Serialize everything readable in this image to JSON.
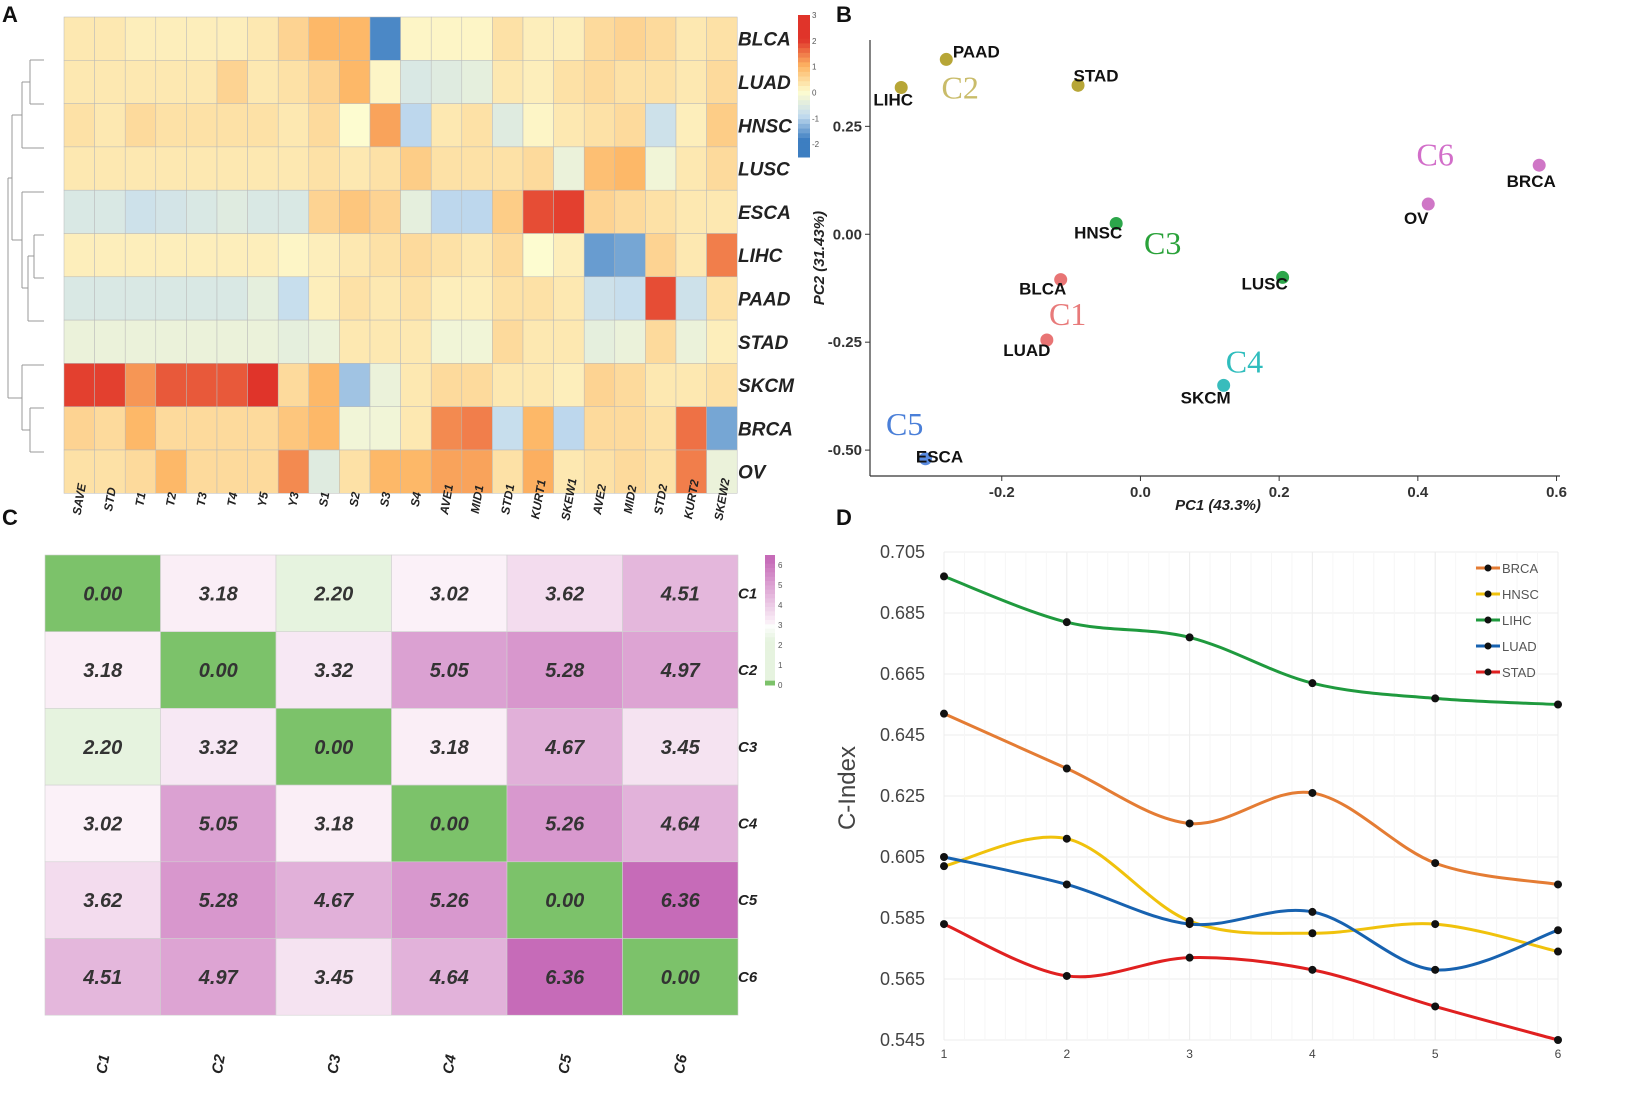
{
  "panels": {
    "a": "A",
    "b": "B",
    "c": "C",
    "d": "D"
  },
  "chart_data": [
    {
      "type": "heatmap",
      "panel": "A",
      "rows": [
        "BLCA",
        "LUAD",
        "HNSC",
        "LUSC",
        "ESCA",
        "LIHC",
        "PAAD",
        "STAD",
        "SKCM",
        "BRCA",
        "OV"
      ],
      "columns": [
        "SAVE",
        "STD",
        "T1",
        "T2",
        "T3",
        "T4",
        "Y5",
        "Y3",
        "S1",
        "S2",
        "S3",
        "S4",
        "AVE1",
        "MID1",
        "STD1",
        "KURT1",
        "SKEW1",
        "AVE2",
        "MID2",
        "STD2",
        "KURT2",
        "SKEW2"
      ],
      "values": [
        [
          0.3,
          0.3,
          0.2,
          0.2,
          0.2,
          0.2,
          0.3,
          0.6,
          1.0,
          1.0,
          -1.8,
          0.1,
          0.1,
          0.1,
          0.4,
          0.2,
          0.2,
          0.5,
          0.6,
          0.5,
          0.3,
          0.4
        ],
        [
          0.3,
          0.3,
          0.3,
          0.3,
          0.3,
          0.6,
          0.3,
          0.4,
          0.6,
          1.0,
          0.1,
          -0.6,
          -0.5,
          -0.4,
          0.3,
          0.2,
          0.4,
          0.5,
          0.4,
          0.4,
          0.3,
          0.5
        ],
        [
          0.4,
          0.3,
          0.5,
          0.4,
          0.4,
          0.4,
          0.4,
          0.3,
          0.5,
          0.0,
          1.2,
          -1.0,
          0.3,
          0.4,
          -0.5,
          0.1,
          0.3,
          0.4,
          0.5,
          -0.8,
          0.2,
          0.7
        ],
        [
          0.3,
          0.3,
          0.3,
          0.3,
          0.3,
          0.3,
          0.3,
          0.3,
          0.4,
          0.3,
          0.4,
          0.7,
          0.4,
          0.4,
          0.4,
          0.5,
          -0.3,
          0.9,
          1.0,
          -0.2,
          0.3,
          0.5
        ],
        [
          -0.6,
          -0.6,
          -0.8,
          -0.7,
          -0.6,
          -0.5,
          -0.6,
          -0.6,
          0.6,
          0.8,
          0.6,
          -0.4,
          -1.0,
          -1.0,
          0.7,
          1.9,
          2.0,
          0.6,
          0.5,
          0.4,
          0.3,
          0.3
        ],
        [
          0.2,
          0.2,
          0.2,
          0.2,
          0.2,
          0.2,
          0.2,
          0.1,
          0.2,
          0.3,
          0.4,
          0.5,
          0.4,
          0.3,
          0.5,
          0.0,
          0.2,
          -1.6,
          -1.5,
          0.6,
          0.3,
          1.5
        ],
        [
          -0.6,
          -0.6,
          -0.6,
          -0.6,
          -0.6,
          -0.6,
          -0.4,
          -0.9,
          0.2,
          0.4,
          0.3,
          0.4,
          0.2,
          0.2,
          0.4,
          0.4,
          0.3,
          -0.8,
          -0.9,
          1.9,
          -0.8,
          0.4
        ],
        [
          -0.3,
          -0.3,
          -0.3,
          -0.3,
          -0.3,
          -0.3,
          -0.3,
          -0.4,
          -0.3,
          0.3,
          0.3,
          0.3,
          -0.2,
          -0.2,
          0.5,
          0.3,
          0.3,
          -0.4,
          -0.3,
          0.5,
          -0.3,
          0.2
        ],
        [
          2.0,
          2.0,
          1.3,
          1.8,
          1.8,
          1.8,
          2.1,
          0.5,
          1.0,
          -1.2,
          -0.3,
          0.3,
          0.5,
          0.5,
          0.3,
          0.3,
          0.2,
          0.6,
          0.5,
          0.3,
          0.3,
          0.4
        ],
        [
          0.6,
          0.5,
          1.0,
          0.5,
          0.5,
          0.5,
          0.5,
          0.8,
          1.0,
          -0.2,
          -0.2,
          0.3,
          1.4,
          1.5,
          -0.9,
          1.0,
          -1.0,
          0.5,
          0.5,
          0.4,
          1.6,
          -1.5
        ],
        [
          0.4,
          0.4,
          0.5,
          1.0,
          0.5,
          0.5,
          0.5,
          1.4,
          -0.5,
          0.4,
          1.0,
          1.0,
          1.2,
          1.2,
          0.4,
          1.1,
          0.3,
          0.4,
          0.5,
          0.4,
          1.5,
          -0.3
        ]
      ],
      "colorbar": {
        "ticks": [
          "3",
          "2",
          "1",
          "0",
          "-1",
          "-2"
        ],
        "range": [
          -2.5,
          3.0
        ]
      },
      "colors": {
        "low": "#3d7ec1",
        "mid": "#fdfcd0",
        "high": "#e0342a"
      }
    },
    {
      "type": "scatter",
      "panel": "B",
      "xlabel": "PC1 (43.3%)",
      "ylabel": "PC2 (31.43%)",
      "xlim": [
        -0.39,
        0.605
      ],
      "ylim": [
        -0.56,
        0.45
      ],
      "xticks": [
        "-0.2",
        "0.0",
        "0.2",
        "0.4",
        "0.6"
      ],
      "xtick_values": [
        -0.2,
        0.0,
        0.2,
        0.4,
        0.6
      ],
      "yticks": [
        "0.25",
        "0.00",
        "-0.25",
        "-0.50"
      ],
      "ytick_values": [
        0.25,
        0.0,
        -0.25,
        -0.5
      ],
      "points": [
        {
          "label": "PAAD",
          "x": -0.28,
          "y": 0.405,
          "cluster": "C2"
        },
        {
          "label": "LIHC",
          "x": -0.345,
          "y": 0.34,
          "cluster": "C2"
        },
        {
          "label": "STAD",
          "x": -0.09,
          "y": 0.345,
          "cluster": "C2"
        },
        {
          "label": "HNSC",
          "x": -0.035,
          "y": 0.025,
          "cluster": "C3"
        },
        {
          "label": "LUSC",
          "x": 0.205,
          "y": -0.1,
          "cluster": "C3"
        },
        {
          "label": "BLCA",
          "x": -0.115,
          "y": -0.105,
          "cluster": "C1"
        },
        {
          "label": "LUAD",
          "x": -0.135,
          "y": -0.245,
          "cluster": "C1"
        },
        {
          "label": "SKCM",
          "x": 0.12,
          "y": -0.35,
          "cluster": "C4"
        },
        {
          "label": "ESCA",
          "x": -0.31,
          "y": -0.52,
          "cluster": "C5"
        },
        {
          "label": "OV",
          "x": 0.415,
          "y": 0.07,
          "cluster": "C6"
        },
        {
          "label": "BRCA",
          "x": 0.575,
          "y": 0.16,
          "cluster": "C6"
        }
      ],
      "clusters": [
        {
          "label": "C2",
          "x": -0.26,
          "y": 0.34,
          "color": "#c9bc6a"
        },
        {
          "label": "C3",
          "x": 0.032,
          "y": -0.02,
          "color": "#2aa23a"
        },
        {
          "label": "C1",
          "x": -0.105,
          "y": -0.185,
          "color": "#e87a7a"
        },
        {
          "label": "C4",
          "x": 0.15,
          "y": -0.295,
          "color": "#2fbdbd"
        },
        {
          "label": "C5",
          "x": -0.34,
          "y": -0.44,
          "color": "#4a7fd8"
        },
        {
          "label": "C6",
          "x": 0.425,
          "y": 0.185,
          "color": "#d26ec9"
        }
      ],
      "point_colors": {
        "C1": "#e87474",
        "C2": "#b7a637",
        "C3": "#2ca64a",
        "C4": "#38bcbc",
        "C5": "#5a8be0",
        "C6": "#cf76c6"
      }
    },
    {
      "type": "heatmap",
      "panel": "C",
      "rows": [
        "C1",
        "C2",
        "C3",
        "C4",
        "C5",
        "C6"
      ],
      "columns": [
        "C1",
        "C2",
        "C3",
        "C4",
        "C5",
        "C6"
      ],
      "values": [
        [
          0.0,
          3.18,
          2.2,
          3.02,
          3.62,
          4.51
        ],
        [
          3.18,
          0.0,
          3.32,
          5.05,
          5.28,
          4.97
        ],
        [
          2.2,
          3.32,
          0.0,
          3.18,
          4.67,
          3.45
        ],
        [
          3.02,
          5.05,
          3.18,
          0.0,
          5.26,
          4.64
        ],
        [
          3.62,
          5.28,
          4.67,
          5.26,
          0.0,
          6.36
        ],
        [
          4.51,
          4.97,
          3.45,
          4.64,
          6.36,
          0.0
        ]
      ],
      "labels": [
        [
          "0.00",
          "3.18",
          "2.20",
          "3.02",
          "3.62",
          "4.51"
        ],
        [
          "3.18",
          "0.00",
          "3.32",
          "5.05",
          "5.28",
          "4.97"
        ],
        [
          "2.20",
          "3.32",
          "0.00",
          "3.18",
          "4.67",
          "3.45"
        ],
        [
          "3.02",
          "5.05",
          "3.18",
          "0.00",
          "5.26",
          "4.64"
        ],
        [
          "3.62",
          "5.28",
          "4.67",
          "5.26",
          "0.00",
          "6.36"
        ],
        [
          "4.51",
          "4.97",
          "3.45",
          "4.64",
          "6.36",
          "0.00"
        ]
      ],
      "colorbar": {
        "ticks": [
          "6",
          "5",
          "4",
          "3",
          "2",
          "1",
          "0"
        ],
        "range": [
          0,
          6.5
        ]
      },
      "colors": {
        "zero": "#7cc26a",
        "light_green": "#e6f3df",
        "white": "#ffffff",
        "high": "#c66bb8"
      }
    },
    {
      "type": "line",
      "panel": "D",
      "x": [
        1,
        2,
        3,
        4,
        5,
        6
      ],
      "xticks": [
        "1",
        "2",
        "3",
        "4",
        "5",
        "6"
      ],
      "ylabel": "C-Index",
      "ylim": [
        0.545,
        0.705
      ],
      "yticks": [
        "0.705",
        "0.685",
        "0.665",
        "0.645",
        "0.625",
        "0.605",
        "0.585",
        "0.565",
        "0.545"
      ],
      "ytick_values": [
        0.705,
        0.685,
        0.665,
        0.645,
        0.625,
        0.605,
        0.585,
        0.565,
        0.545
      ],
      "series": [
        {
          "name": "BRCA",
          "color": "#e47c34",
          "values": [
            0.652,
            0.634,
            0.616,
            0.626,
            0.603,
            0.596
          ]
        },
        {
          "name": "HNSC",
          "color": "#f0c20c",
          "values": [
            0.602,
            0.611,
            0.584,
            0.58,
            0.583,
            0.574
          ]
        },
        {
          "name": "LIHC",
          "color": "#1f9a3e",
          "values": [
            0.697,
            0.682,
            0.677,
            0.662,
            0.657,
            0.655
          ]
        },
        {
          "name": "LUAD",
          "color": "#1762b0",
          "values": [
            0.605,
            0.596,
            0.583,
            0.587,
            0.568,
            0.581
          ]
        },
        {
          "name": "STAD",
          "color": "#e02020",
          "values": [
            0.583,
            0.566,
            0.572,
            0.568,
            0.556,
            0.545
          ]
        }
      ]
    }
  ]
}
